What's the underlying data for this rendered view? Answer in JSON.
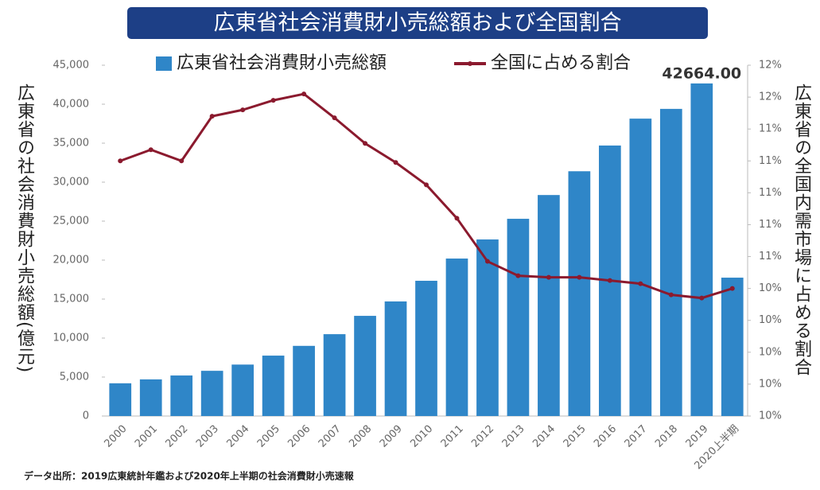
{
  "chart_data": {
    "type": "bar_line",
    "title": "広東省社会消費財小売総額および全国割合",
    "ylabel": "広東省の社会消費財小売総額(億元)",
    "y2label": "広東省の全国内需市場に占める割合",
    "source": "データ出所：2019広東統計年鑑および2020年上半期の社会消費財小売速報",
    "categories": [
      "2000",
      "2001",
      "2002",
      "2003",
      "2004",
      "2005",
      "2006",
      "2007",
      "2008",
      "2009",
      "2010",
      "2011",
      "2012",
      "2013",
      "2014",
      "2015",
      "2016",
      "2017",
      "2018",
      "2019",
      "2020上半期"
    ],
    "series": [
      {
        "name": "広東省社会消費財小売総額",
        "type": "bar",
        "color": "#2f86c8",
        "values": [
          4200,
          4700,
          5200,
          5800,
          6600,
          7750,
          9000,
          10500,
          12850,
          14700,
          17350,
          20200,
          22650,
          25300,
          28350,
          31400,
          34700,
          38150,
          39400,
          42664,
          17750
        ],
        "value_labels": [
          null,
          null,
          null,
          null,
          null,
          null,
          null,
          null,
          null,
          null,
          null,
          null,
          null,
          null,
          null,
          null,
          null,
          null,
          null,
          "42664.00",
          null
        ]
      },
      {
        "name": "全国に占める割合",
        "type": "line",
        "axis": "y2",
        "color": "#8b1a2e",
        "values": [
          11.2,
          11.27,
          11.2,
          11.48,
          11.52,
          11.58,
          11.62,
          11.47,
          11.31,
          11.19,
          11.05,
          10.84,
          10.57,
          10.48,
          10.47,
          10.47,
          10.45,
          10.43,
          10.36,
          10.34,
          10.4
        ]
      }
    ],
    "ylim": [
      0,
      45000
    ],
    "yticks": [
      0,
      {
        "value": 5000,
        "label": "5,000"
      },
      {
        "value": 10000,
        "label": "10,000"
      },
      {
        "value": 15000,
        "label": "15,000"
      },
      {
        "value": 20000,
        "label": "20,000"
      },
      {
        "value": 25000,
        "label": "25,000"
      },
      {
        "value": 30000,
        "label": "30,000"
      },
      {
        "value": 35000,
        "label": "35,000"
      },
      {
        "value": 40000,
        "label": "40,000"
      },
      {
        "value": 45000,
        "label": "45,000"
      }
    ],
    "y2lim": [
      9.6,
      11.8
    ],
    "y2ticks": [
      {
        "value": 9.6,
        "label": "10%"
      },
      {
        "value": 9.8,
        "label": "10%"
      },
      {
        "value": 10.0,
        "label": "10%"
      },
      {
        "value": 10.2,
        "label": "10%"
      },
      {
        "value": 10.4,
        "label": "10%"
      },
      {
        "value": 10.6,
        "label": "11%"
      },
      {
        "value": 10.8,
        "label": "11%"
      },
      {
        "value": 11.0,
        "label": "11%"
      },
      {
        "value": 11.2,
        "label": "11%"
      },
      {
        "value": 11.4,
        "label": "11%"
      },
      {
        "value": 11.6,
        "label": "12%"
      },
      {
        "value": 11.8,
        "label": "12%"
      }
    ],
    "grid": false,
    "legend": "top"
  }
}
